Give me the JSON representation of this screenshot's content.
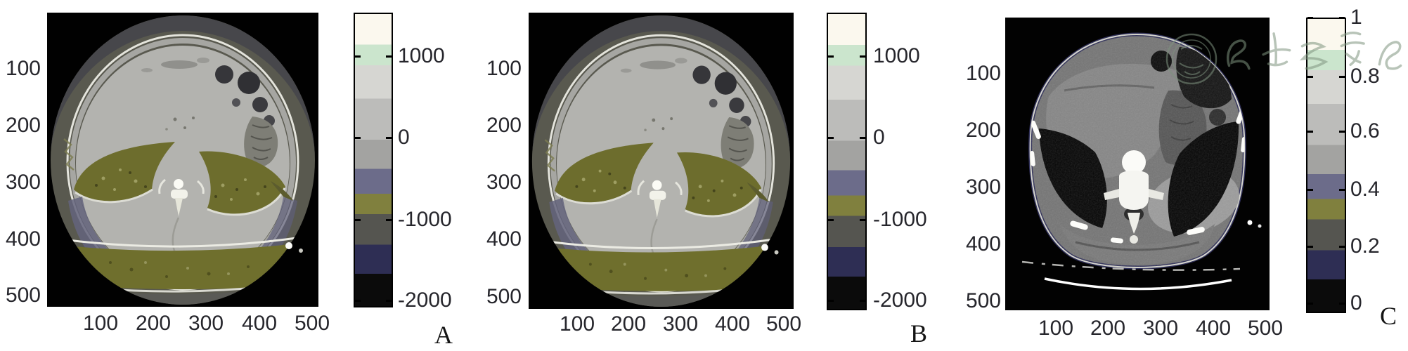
{
  "figure": {
    "background": "#ffffff",
    "label_color": "#26262c",
    "colormap_bands": [
      "#fbf8ee",
      "#cbe5cd",
      "#d6d6d2",
      "#bcbcba",
      "#a3a3a1",
      "#6c6c8a",
      "#80803e",
      "#555550",
      "#2e2e54",
      "#0b0b0b"
    ],
    "watermark": {
      "text": "中华医学会"
    },
    "panels": [
      {
        "letter": "A",
        "y_tick_labels": [
          "100",
          "200",
          "300",
          "400",
          "500"
        ],
        "x_tick_labels": [
          "100",
          "200",
          "300",
          "400",
          "500"
        ],
        "colorbar_tick_labels": [
          "1000",
          "0",
          "-1000",
          "-2000"
        ],
        "description": "Pseudo-colored axial abdominal CT slice"
      },
      {
        "letter": "B",
        "y_tick_labels": [
          "100",
          "200",
          "300",
          "400",
          "500"
        ],
        "x_tick_labels": [
          "100",
          "200",
          "300",
          "400",
          "500"
        ],
        "colorbar_tick_labels": [
          "1000",
          "0",
          "-1000",
          "-2000"
        ],
        "description": "Pseudo-colored axial abdominal CT slice (processed version of A)"
      },
      {
        "letter": "C",
        "y_tick_labels": [
          "100",
          "200",
          "300",
          "400",
          "500"
        ],
        "x_tick_labels": [
          "100",
          "200",
          "300",
          "400",
          "500"
        ],
        "colorbar_tick_labels": [
          "1",
          "0.8",
          "0.6",
          "0.4",
          "0.2",
          "0"
        ],
        "description": "Grayscale axial abdominal CT slice with watermark"
      }
    ]
  },
  "chart_data": [
    {
      "type": "heatmap",
      "title": "A",
      "x_ticks": [
        100,
        200,
        300,
        400,
        500
      ],
      "y_ticks": [
        100,
        200,
        300,
        400,
        500
      ],
      "image_grid": [
        512,
        512
      ],
      "colorbar": {
        "ticks": [
          1000,
          0,
          -1000,
          -2000
        ],
        "range": [
          -2000,
          1500
        ]
      },
      "legend_position": "right",
      "grid": false,
      "description": "Axial abdominal CT slice rendered with a banded pseudo-color map over CT-number scale"
    },
    {
      "type": "heatmap",
      "title": "B",
      "x_ticks": [
        100,
        200,
        300,
        400,
        500
      ],
      "y_ticks": [
        100,
        200,
        300,
        400,
        500
      ],
      "image_grid": [
        512,
        512
      ],
      "colorbar": {
        "ticks": [
          1000,
          0,
          -1000,
          -2000
        ],
        "range": [
          -2000,
          1500
        ]
      },
      "legend_position": "right",
      "grid": false,
      "description": "Same CT slice as A after processing, same banded pseudo-color map"
    },
    {
      "type": "heatmap",
      "title": "C",
      "x_ticks": [
        100,
        200,
        300,
        400,
        500
      ],
      "y_ticks": [
        100,
        200,
        300,
        400,
        500
      ],
      "image_grid": [
        512,
        512
      ],
      "colorbar": {
        "ticks": [
          1,
          0.8,
          0.6,
          0.4,
          0.2,
          0
        ],
        "range": [
          0,
          1
        ]
      },
      "legend_position": "right",
      "grid": false,
      "description": "Original grayscale axial abdominal CT slice with circular seal watermark and Chinese calligraphy"
    }
  ]
}
